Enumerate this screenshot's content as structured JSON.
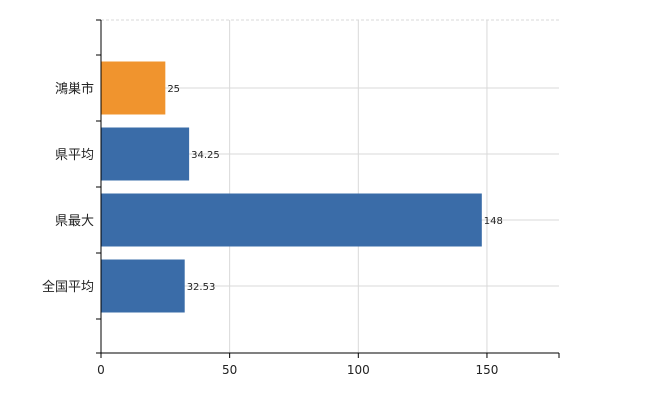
{
  "chart_data": {
    "type": "bar",
    "orientation": "horizontal",
    "categories": [
      "鴻巣市",
      "県平均",
      "県最大",
      "全国平均"
    ],
    "values": [
      25,
      34.25,
      148,
      32.53
    ],
    "value_labels": [
      "25",
      "34.25",
      "148",
      "32.53"
    ],
    "bar_colors": [
      "#F0942E",
      "#3A6CA8",
      "#3A6CA8",
      "#3A6CA8"
    ],
    "xlim": [
      0,
      178
    ],
    "xticks": [
      0,
      50,
      100,
      150
    ],
    "xtick_labels": [
      "0",
      "50",
      "100",
      "150"
    ],
    "grid": true,
    "grid_color": "#d9d9d9",
    "legend": "none",
    "title": "",
    "xlabel": "",
    "ylabel": ""
  }
}
